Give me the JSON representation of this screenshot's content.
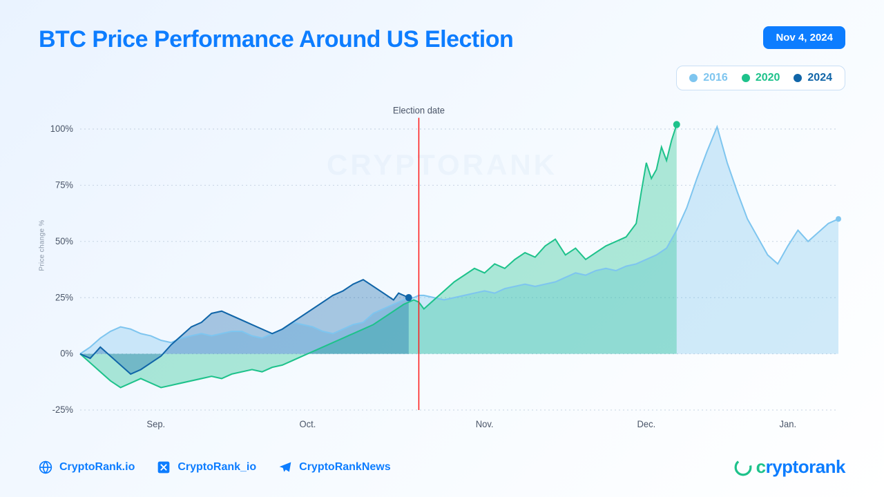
{
  "title": "BTC Price Performance Around US Election",
  "date_badge": "Nov 4, 2024",
  "watermark": "CRYPTORANK",
  "legend": {
    "items": [
      {
        "label": "2016",
        "color": "#7ec5ef"
      },
      {
        "label": "2020",
        "color": "#1ec28b"
      },
      {
        "label": "2024",
        "color": "#1065a8"
      }
    ],
    "border_color": "#c9dff5",
    "background": "#ffffff"
  },
  "chart": {
    "type": "area",
    "ylabel": "Price change %",
    "ylim": [
      -25,
      105
    ],
    "yticks": [
      -25,
      0,
      25,
      50,
      75,
      100
    ],
    "ytick_labels": [
      "-25%",
      "0%",
      "25%",
      "50%",
      "75%",
      "100%"
    ],
    "x_range": [
      0,
      150
    ],
    "xticks": [
      15,
      45,
      80,
      112,
      140
    ],
    "xtick_labels": [
      "Sep.",
      "Oct.",
      "Nov.",
      "Dec.",
      "Jan."
    ],
    "election_x": 67,
    "election_label": "Election date",
    "grid_color": "#c6d3e2",
    "election_color": "#ff1515",
    "background": "transparent",
    "series": [
      {
        "name": "2016",
        "color": "#7ec5ef",
        "fill_opacity": 0.35,
        "endpoint_marker": true,
        "marker_size": 4,
        "points": [
          [
            0,
            0
          ],
          [
            2,
            3
          ],
          [
            4,
            7
          ],
          [
            6,
            10
          ],
          [
            8,
            12
          ],
          [
            10,
            11
          ],
          [
            12,
            9
          ],
          [
            14,
            8
          ],
          [
            16,
            6
          ],
          [
            18,
            5
          ],
          [
            20,
            7
          ],
          [
            22,
            8
          ],
          [
            24,
            9
          ],
          [
            26,
            8
          ],
          [
            28,
            9
          ],
          [
            30,
            10
          ],
          [
            32,
            10
          ],
          [
            34,
            8
          ],
          [
            36,
            7
          ],
          [
            38,
            9
          ],
          [
            40,
            11
          ],
          [
            42,
            14
          ],
          [
            44,
            13
          ],
          [
            46,
            12
          ],
          [
            48,
            10
          ],
          [
            50,
            9
          ],
          [
            52,
            11
          ],
          [
            54,
            13
          ],
          [
            56,
            14
          ],
          [
            58,
            18
          ],
          [
            60,
            20
          ],
          [
            62,
            22
          ],
          [
            64,
            24
          ],
          [
            66,
            25
          ],
          [
            67,
            26
          ],
          [
            68,
            26
          ],
          [
            70,
            25
          ],
          [
            72,
            24
          ],
          [
            74,
            25
          ],
          [
            76,
            26
          ],
          [
            78,
            27
          ],
          [
            80,
            28
          ],
          [
            82,
            27
          ],
          [
            84,
            29
          ],
          [
            86,
            30
          ],
          [
            88,
            31
          ],
          [
            90,
            30
          ],
          [
            92,
            31
          ],
          [
            94,
            32
          ],
          [
            96,
            34
          ],
          [
            98,
            36
          ],
          [
            100,
            35
          ],
          [
            102,
            37
          ],
          [
            104,
            38
          ],
          [
            106,
            37
          ],
          [
            108,
            39
          ],
          [
            110,
            40
          ],
          [
            112,
            42
          ],
          [
            114,
            44
          ],
          [
            116,
            47
          ],
          [
            118,
            55
          ],
          [
            120,
            65
          ],
          [
            122,
            78
          ],
          [
            124,
            90
          ],
          [
            126,
            101
          ],
          [
            128,
            85
          ],
          [
            130,
            72
          ],
          [
            132,
            60
          ],
          [
            134,
            52
          ],
          [
            136,
            44
          ],
          [
            138,
            40
          ],
          [
            140,
            48
          ],
          [
            142,
            55
          ],
          [
            144,
            50
          ],
          [
            146,
            54
          ],
          [
            148,
            58
          ],
          [
            150,
            60
          ]
        ]
      },
      {
        "name": "2020",
        "color": "#1ec28b",
        "fill_opacity": 0.35,
        "endpoint_marker": true,
        "marker_size": 5,
        "points": [
          [
            0,
            0
          ],
          [
            2,
            -4
          ],
          [
            4,
            -8
          ],
          [
            6,
            -12
          ],
          [
            8,
            -15
          ],
          [
            10,
            -13
          ],
          [
            12,
            -11
          ],
          [
            14,
            -13
          ],
          [
            16,
            -15
          ],
          [
            18,
            -14
          ],
          [
            20,
            -13
          ],
          [
            22,
            -12
          ],
          [
            24,
            -11
          ],
          [
            26,
            -10
          ],
          [
            28,
            -11
          ],
          [
            30,
            -9
          ],
          [
            32,
            -8
          ],
          [
            34,
            -7
          ],
          [
            36,
            -8
          ],
          [
            38,
            -6
          ],
          [
            40,
            -5
          ],
          [
            42,
            -3
          ],
          [
            44,
            -1
          ],
          [
            46,
            1
          ],
          [
            48,
            3
          ],
          [
            50,
            5
          ],
          [
            52,
            7
          ],
          [
            54,
            9
          ],
          [
            56,
            11
          ],
          [
            58,
            13
          ],
          [
            60,
            16
          ],
          [
            62,
            19
          ],
          [
            64,
            22
          ],
          [
            66,
            24
          ],
          [
            67,
            23
          ],
          [
            68,
            20
          ],
          [
            70,
            24
          ],
          [
            72,
            28
          ],
          [
            74,
            32
          ],
          [
            76,
            35
          ],
          [
            78,
            38
          ],
          [
            80,
            36
          ],
          [
            82,
            40
          ],
          [
            84,
            38
          ],
          [
            86,
            42
          ],
          [
            88,
            45
          ],
          [
            90,
            43
          ],
          [
            92,
            48
          ],
          [
            94,
            51
          ],
          [
            96,
            44
          ],
          [
            98,
            47
          ],
          [
            100,
            42
          ],
          [
            102,
            45
          ],
          [
            104,
            48
          ],
          [
            106,
            50
          ],
          [
            108,
            52
          ],
          [
            110,
            58
          ],
          [
            111,
            72
          ],
          [
            112,
            85
          ],
          [
            113,
            78
          ],
          [
            114,
            82
          ],
          [
            115,
            92
          ],
          [
            116,
            86
          ],
          [
            117,
            95
          ],
          [
            118,
            102
          ]
        ]
      },
      {
        "name": "2024",
        "color": "#1065a8",
        "fill_opacity": 0.35,
        "endpoint_marker": true,
        "marker_size": 5,
        "points": [
          [
            0,
            0
          ],
          [
            2,
            -2
          ],
          [
            4,
            3
          ],
          [
            6,
            -1
          ],
          [
            8,
            -5
          ],
          [
            10,
            -9
          ],
          [
            12,
            -7
          ],
          [
            14,
            -4
          ],
          [
            16,
            -1
          ],
          [
            18,
            4
          ],
          [
            20,
            8
          ],
          [
            22,
            12
          ],
          [
            24,
            14
          ],
          [
            26,
            18
          ],
          [
            28,
            19
          ],
          [
            30,
            17
          ],
          [
            32,
            15
          ],
          [
            34,
            13
          ],
          [
            36,
            11
          ],
          [
            38,
            9
          ],
          [
            40,
            11
          ],
          [
            42,
            14
          ],
          [
            44,
            17
          ],
          [
            46,
            20
          ],
          [
            48,
            23
          ],
          [
            50,
            26
          ],
          [
            52,
            28
          ],
          [
            54,
            31
          ],
          [
            56,
            33
          ],
          [
            58,
            30
          ],
          [
            60,
            27
          ],
          [
            62,
            24
          ],
          [
            63,
            27
          ],
          [
            64,
            26
          ],
          [
            65,
            25
          ]
        ]
      }
    ]
  },
  "footer": {
    "socials": [
      {
        "icon": "globe",
        "label": "CryptoRank.io"
      },
      {
        "icon": "x",
        "label": "CryptoRank_io"
      },
      {
        "icon": "telegram",
        "label": "CryptoRankNews"
      }
    ],
    "brand": "cryptorank",
    "brand_color": "#0d7dff",
    "brand_accent": "#1ec28b"
  },
  "styling": {
    "title_color": "#0d7dff",
    "title_fontsize": 34,
    "badge_bg": "#0d7dff",
    "badge_fg": "#ffffff",
    "page_bg_gradient": [
      "#eaf3ff",
      "#f5faff",
      "#ffffff"
    ],
    "axis_text_color": "#4a5568",
    "axis_fontsize": 13
  }
}
